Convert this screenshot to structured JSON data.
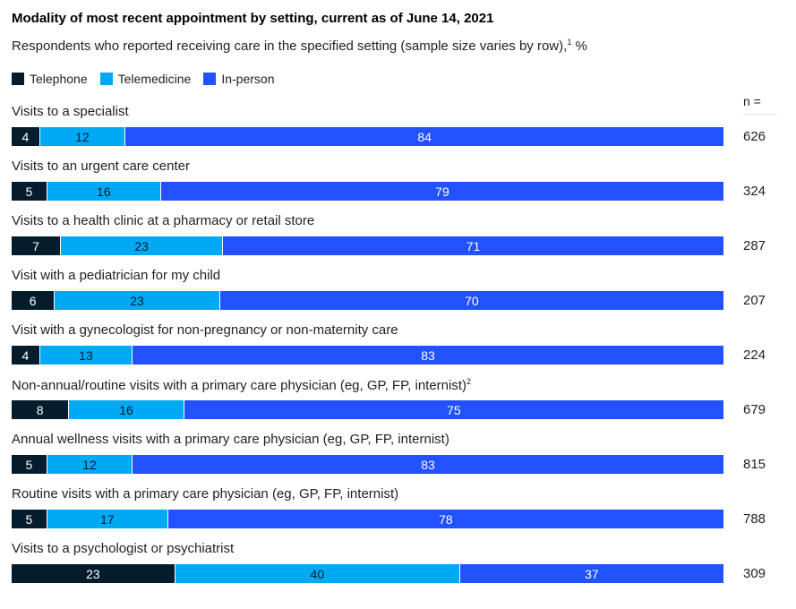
{
  "chart_data": {
    "type": "bar",
    "orientation": "horizontal-stacked-100",
    "title": "Modality of most recent appointment by setting, current as of June 14, 2021",
    "subtitle": "Respondents who reported receiving care in the specified setting (sample size varies by row),",
    "subtitle_sup": "1",
    "subtitle_unit": " %",
    "n_header": "n =",
    "legend": [
      {
        "name": "Telephone",
        "color": "#051c2c",
        "text_color": "#ffffff"
      },
      {
        "name": "Telemedicine",
        "color": "#00a9f4",
        "text_color": "#051c2c"
      },
      {
        "name": "In-person",
        "color": "#2251ff",
        "text_color": "#ffffff"
      }
    ],
    "categories": [
      {
        "label": "Visits to a specialist",
        "sup": "",
        "values": [
          4,
          12,
          84
        ],
        "n": "626"
      },
      {
        "label": "Visits to an urgent care center",
        "sup": "",
        "values": [
          5,
          16,
          79
        ],
        "n": "324"
      },
      {
        "label": "Visits to a health clinic at a pharmacy or retail store",
        "sup": "",
        "values": [
          7,
          23,
          71
        ],
        "n": "287"
      },
      {
        "label": "Visit with a pediatrician for my child",
        "sup": "",
        "values": [
          6,
          23,
          70
        ],
        "n": "207"
      },
      {
        "label": "Visit with a gynecologist for non-pregnancy or non-maternity care",
        "sup": "",
        "values": [
          4,
          13,
          83
        ],
        "n": "224"
      },
      {
        "label": "Non-annual/routine visits with a primary care physician (eg, GP, FP, internist)",
        "sup": "2",
        "values": [
          8,
          16,
          75
        ],
        "n": "679"
      },
      {
        "label": "Annual wellness visits with a primary care physician (eg, GP, FP, internist)",
        "sup": "",
        "values": [
          5,
          12,
          83
        ],
        "n": "815"
      },
      {
        "label": "Routine visits with a primary care physician (eg, GP, FP, internist)",
        "sup": "",
        "values": [
          5,
          17,
          78
        ],
        "n": "788"
      },
      {
        "label": "Visits to a psychologist or psychiatrist",
        "sup": "",
        "values": [
          23,
          40,
          37
        ],
        "n": "309"
      }
    ]
  }
}
